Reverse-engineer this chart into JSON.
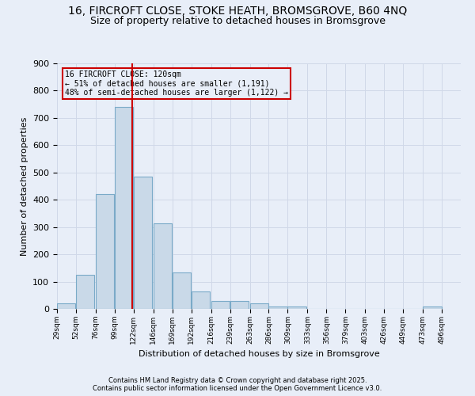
{
  "title1": "16, FIRCROFT CLOSE, STOKE HEATH, BROMSGROVE, B60 4NQ",
  "title2": "Size of property relative to detached houses in Bromsgrove",
  "xlabel": "Distribution of detached houses by size in Bromsgrove",
  "ylabel": "Number of detached properties",
  "bin_labels": [
    "29sqm",
    "52sqm",
    "76sqm",
    "99sqm",
    "122sqm",
    "146sqm",
    "169sqm",
    "192sqm",
    "216sqm",
    "239sqm",
    "263sqm",
    "286sqm",
    "309sqm",
    "333sqm",
    "356sqm",
    "379sqm",
    "403sqm",
    "426sqm",
    "449sqm",
    "473sqm",
    "496sqm"
  ],
  "bin_edges": [
    29,
    52,
    76,
    99,
    122,
    146,
    169,
    192,
    216,
    239,
    263,
    286,
    309,
    333,
    356,
    379,
    403,
    426,
    449,
    473,
    496
  ],
  "bar_heights": [
    20,
    125,
    420,
    740,
    485,
    315,
    135,
    65,
    30,
    30,
    20,
    10,
    8,
    0,
    0,
    0,
    0,
    0,
    0,
    10
  ],
  "bar_color": "#c9d9e8",
  "bar_edgecolor": "#7aaac8",
  "property_line_x": 120,
  "property_line_color": "#cc0000",
  "annotation_text": "16 FIRCROFT CLOSE: 120sqm\n← 51% of detached houses are smaller (1,191)\n48% of semi-detached houses are larger (1,122) →",
  "annotation_box_color": "#cc0000",
  "ylim": [
    0,
    900
  ],
  "yticks": [
    0,
    100,
    200,
    300,
    400,
    500,
    600,
    700,
    800,
    900
  ],
  "grid_color": "#d0d8e8",
  "background_color": "#e8eef8",
  "footer1": "Contains HM Land Registry data © Crown copyright and database right 2025.",
  "footer2": "Contains public sector information licensed under the Open Government Licence v3.0.",
  "title_fontsize": 10,
  "subtitle_fontsize": 9
}
